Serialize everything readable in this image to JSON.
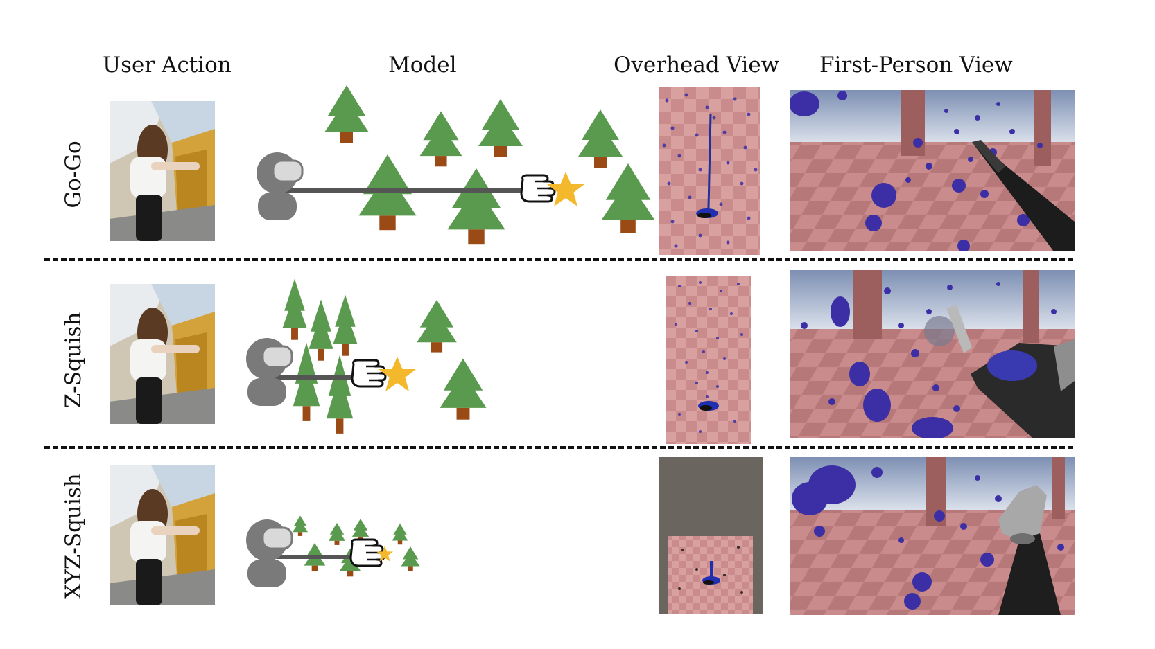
{
  "columns": {
    "user_action": "User Action",
    "model": "Model",
    "overhead": "Overhead View",
    "first_person": "First-Person View"
  },
  "rows": [
    {
      "label": "Go-Go"
    },
    {
      "label": "Z-Squish"
    },
    {
      "label": "XYZ-Squish"
    }
  ],
  "colors": {
    "tree_green": "#5a9a4e",
    "trunk_brown": "#9a4a14",
    "star_gold": "#f3b82b",
    "avatar_gray": "#7a7a7a",
    "floor_pink": "#c98b8b",
    "sphere_blue": "#3c2fa6"
  }
}
